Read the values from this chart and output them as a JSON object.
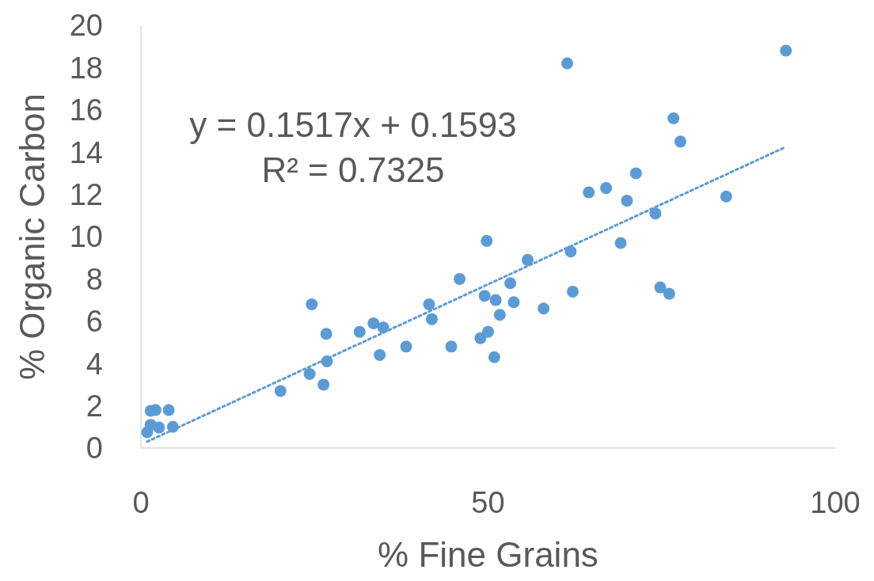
{
  "chart_data": {
    "type": "scatter",
    "xlabel": "% Fine Grains",
    "ylabel": "% Organic Carbon",
    "xlim": [
      0,
      100
    ],
    "xticks": [
      0,
      50,
      100
    ],
    "ylim": [
      0,
      20
    ],
    "yticks": [
      0,
      2,
      4,
      6,
      8,
      10,
      12,
      14,
      16,
      18,
      20
    ],
    "grid": false,
    "marker": "circle",
    "annotations": [
      "y = 0.1517x + 0.1593",
      "R² = 0.7325"
    ],
    "series": [
      {
        "color": "#5b9bd5",
        "x": [
          0.9,
          1.4,
          2.1,
          1.4,
          2.6,
          4.0,
          4.6,
          20.1,
          24.3,
          24.6,
          26.3,
          26.7,
          26.8,
          31.5,
          33.5,
          34.4,
          34.9,
          38.2,
          41.5,
          41.9,
          44.7,
          45.9,
          48.9,
          49.5,
          49.8,
          50.0,
          50.9,
          51.1,
          51.7,
          53.2,
          53.7,
          55.7,
          58.0,
          61.4,
          61.9,
          62.2,
          64.5,
          67.0,
          69.1,
          70.0,
          71.3,
          74.1,
          74.8,
          76.1,
          76.7,
          77.7,
          84.3,
          92.9
        ],
        "values": [
          0.75,
          1.76,
          1.8,
          1.1,
          0.97,
          1.8,
          1.0,
          2.7,
          3.5,
          6.8,
          3.0,
          5.4,
          4.1,
          5.5,
          5.9,
          4.4,
          5.7,
          4.8,
          6.8,
          6.1,
          4.8,
          8.0,
          5.2,
          7.2,
          9.8,
          5.5,
          4.3,
          7.0,
          6.3,
          7.8,
          6.9,
          8.9,
          6.6,
          18.2,
          9.3,
          7.4,
          12.1,
          12.3,
          9.7,
          11.7,
          13.0,
          11.1,
          7.6,
          7.3,
          15.6,
          14.5,
          11.9,
          18.8
        ]
      },
      {
        "type": "line",
        "color": "#5b9bd5",
        "line_style": "dotted",
        "marker": "none",
        "x": [
          0.9,
          92.9
        ],
        "values": [
          0.3,
          14.25
        ]
      }
    ]
  }
}
